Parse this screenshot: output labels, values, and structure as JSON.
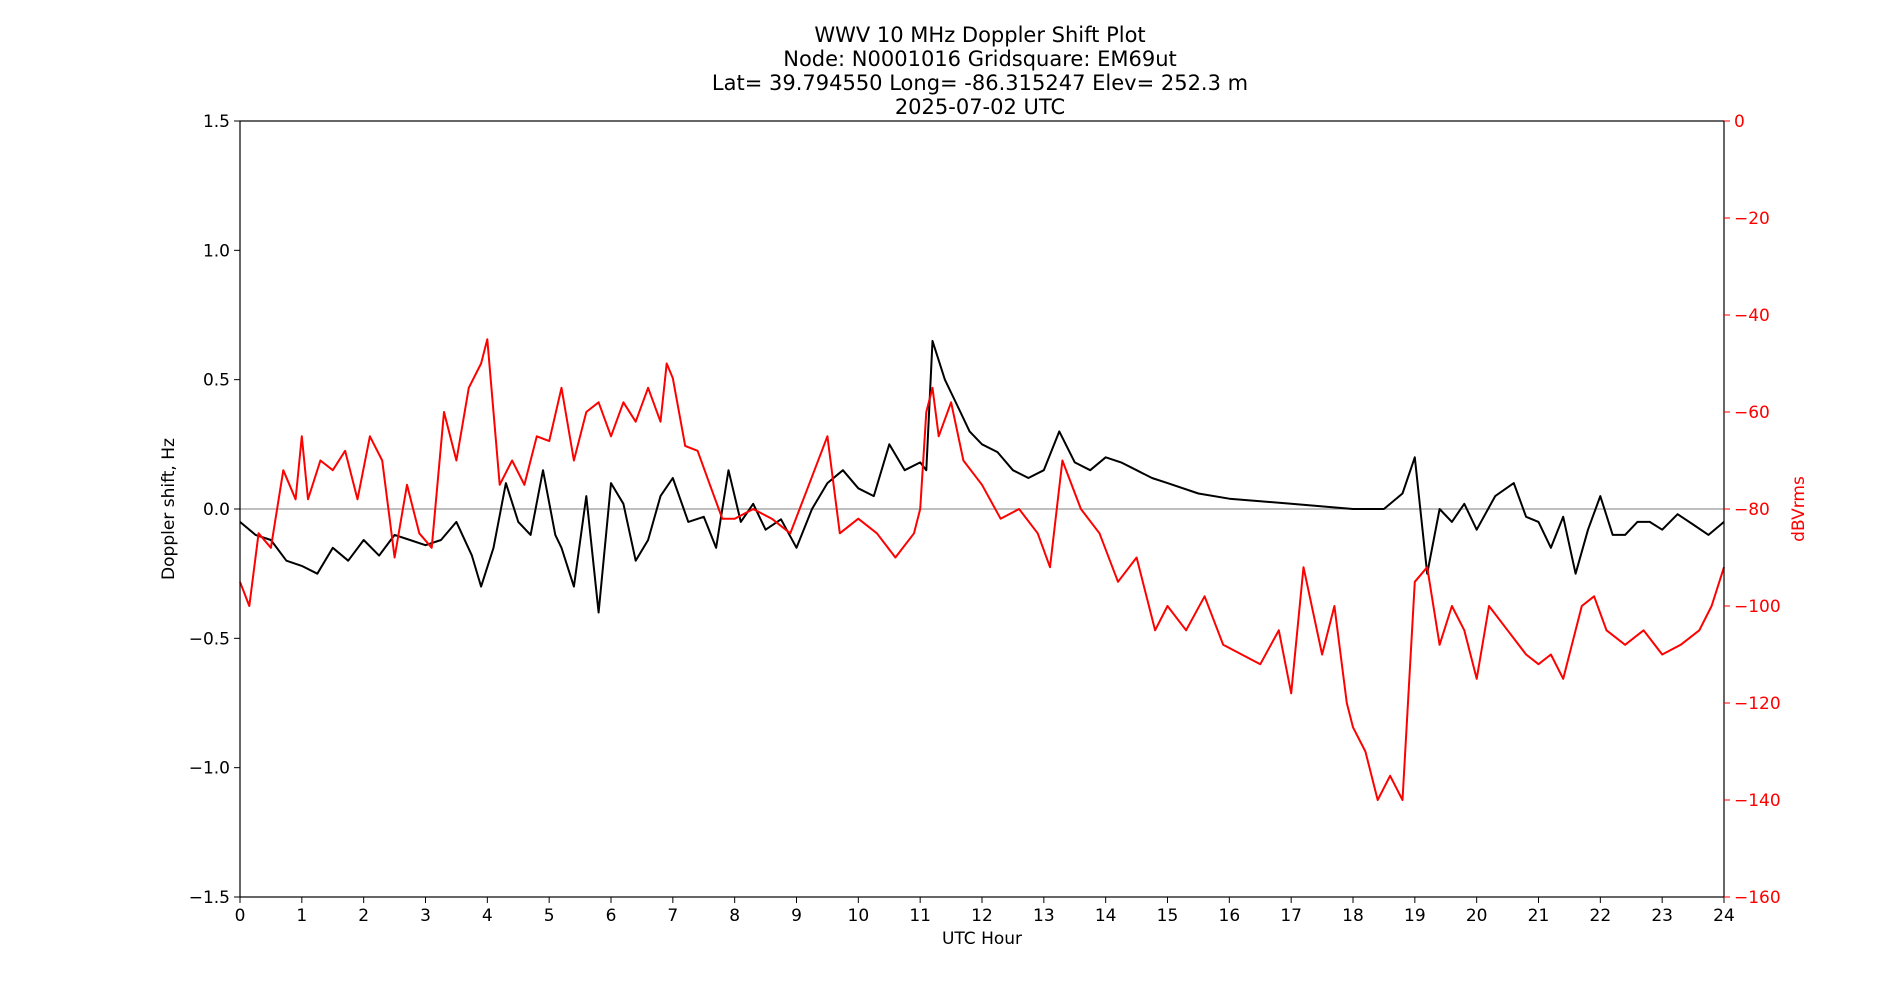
{
  "chart_data": {
    "type": "line",
    "title_lines": [
      "WWV 10 MHz Doppler Shift Plot",
      "Node:  N0001016     Gridsquare:  EM69ut",
      "Lat= 39.794550    Long= -86.315247    Elev= 252.3 m",
      "2025-07-02  UTC"
    ],
    "xlabel": "UTC Hour",
    "ylabel_left": "Doppler shift, Hz",
    "ylabel_right": "dBVrms",
    "xlim": [
      0,
      24
    ],
    "ylim_left": [
      -1.5,
      1.5
    ],
    "ylim_right": [
      -160,
      0
    ],
    "x_ticks": [
      "0",
      "1",
      "2",
      "3",
      "4",
      "5",
      "6",
      "7",
      "8",
      "9",
      "10",
      "11",
      "12",
      "13",
      "14",
      "15",
      "16",
      "17",
      "18",
      "19",
      "20",
      "21",
      "22",
      "23",
      "24"
    ],
    "y_ticks_left": [
      "1.5",
      "1.0",
      "0.5",
      "0.0",
      "−0.5",
      "−1.0",
      "−1.5"
    ],
    "y_ticks_right": [
      "0",
      "−20",
      "−40",
      "−60",
      "−80",
      "−100",
      "−120",
      "−140",
      "−160"
    ],
    "zero_line": true,
    "colors": {
      "doppler": "#000000",
      "power": "#ff0000",
      "zero_line": "#999999"
    },
    "series": [
      {
        "axis": "left",
        "x": [
          0,
          0.25,
          0.5,
          0.75,
          1,
          1.25,
          1.5,
          1.75,
          2,
          2.25,
          2.5,
          2.75,
          3,
          3.25,
          3.5,
          3.75,
          3.9,
          4.1,
          4.3,
          4.5,
          4.7,
          4.9,
          5.1,
          5.2,
          5.4,
          5.6,
          5.8,
          6,
          6.2,
          6.4,
          6.6,
          6.8,
          7,
          7.25,
          7.5,
          7.7,
          7.9,
          8.1,
          8.3,
          8.5,
          8.75,
          9,
          9.25,
          9.5,
          9.75,
          10,
          10.25,
          10.5,
          10.75,
          11,
          11.1,
          11.2,
          11.4,
          11.6,
          11.8,
          12,
          12.25,
          12.5,
          12.75,
          13,
          13.25,
          13.5,
          13.75,
          14,
          14.25,
          14.5,
          14.75,
          15,
          15.5,
          16,
          16.5,
          17,
          17.5,
          18,
          18.5,
          18.8,
          19,
          19.2,
          19.4,
          19.6,
          19.8,
          20,
          20.3,
          20.6,
          20.8,
          21,
          21.2,
          21.4,
          21.6,
          21.8,
          22,
          22.2,
          22.4,
          22.6,
          22.8,
          23,
          23.25,
          23.5,
          23.75,
          24
        ],
        "values": [
          -0.05,
          -0.1,
          -0.12,
          -0.2,
          -0.22,
          -0.25,
          -0.15,
          -0.2,
          -0.12,
          -0.18,
          -0.1,
          -0.12,
          -0.14,
          -0.12,
          -0.05,
          -0.18,
          -0.3,
          -0.15,
          0.1,
          -0.05,
          -0.1,
          0.15,
          -0.1,
          -0.15,
          -0.3,
          0.05,
          -0.4,
          0.1,
          0.02,
          -0.2,
          -0.12,
          0.05,
          0.12,
          -0.05,
          -0.03,
          -0.15,
          0.15,
          -0.05,
          0.02,
          -0.08,
          -0.04,
          -0.15,
          0.0,
          0.1,
          0.15,
          0.08,
          0.05,
          0.25,
          0.15,
          0.18,
          0.15,
          0.65,
          0.5,
          0.4,
          0.3,
          0.25,
          0.22,
          0.15,
          0.12,
          0.15,
          0.3,
          0.18,
          0.15,
          0.2,
          0.18,
          0.15,
          0.12,
          0.1,
          0.06,
          0.04,
          0.03,
          0.02,
          0.01,
          0.0,
          0.0,
          0.06,
          0.2,
          -0.25,
          0.0,
          -0.05,
          0.02,
          -0.08,
          0.05,
          0.1,
          -0.03,
          -0.05,
          -0.15,
          -0.03,
          -0.25,
          -0.08,
          0.05,
          -0.1,
          -0.1,
          -0.05,
          -0.05,
          -0.08,
          -0.02,
          -0.06,
          -0.1,
          -0.05
        ]
      },
      {
        "axis": "right",
        "x": [
          0,
          0.15,
          0.3,
          0.5,
          0.7,
          0.9,
          1,
          1.1,
          1.3,
          1.5,
          1.7,
          1.9,
          2.1,
          2.3,
          2.5,
          2.7,
          2.9,
          3.1,
          3.3,
          3.5,
          3.7,
          3.9,
          4.0,
          4.2,
          4.4,
          4.6,
          4.8,
          5,
          5.2,
          5.4,
          5.6,
          5.8,
          6,
          6.2,
          6.4,
          6.6,
          6.8,
          6.9,
          7.0,
          7.2,
          7.4,
          7.6,
          7.8,
          8,
          8.3,
          8.6,
          8.9,
          9.2,
          9.5,
          9.7,
          10,
          10.3,
          10.6,
          10.9,
          11,
          11.1,
          11.2,
          11.3,
          11.5,
          11.7,
          12,
          12.3,
          12.6,
          12.9,
          13.1,
          13.3,
          13.6,
          13.9,
          14.2,
          14.5,
          14.8,
          15,
          15.3,
          15.6,
          15.9,
          16.2,
          16.5,
          16.8,
          17,
          17.2,
          17.5,
          17.7,
          17.9,
          18.0,
          18.2,
          18.4,
          18.6,
          18.8,
          19,
          19.2,
          19.4,
          19.6,
          19.8,
          20,
          20.2,
          20.5,
          20.8,
          21,
          21.2,
          21.4,
          21.7,
          21.9,
          22.1,
          22.4,
          22.7,
          23,
          23.3,
          23.6,
          23.8,
          24
        ],
        "values": [
          -95,
          -100,
          -85,
          -88,
          -72,
          -78,
          -65,
          -78,
          -70,
          -72,
          -68,
          -78,
          -65,
          -70,
          -90,
          -75,
          -85,
          -88,
          -60,
          -70,
          -55,
          -50,
          -45,
          -75,
          -70,
          -75,
          -65,
          -66,
          -55,
          -70,
          -60,
          -58,
          -65,
          -58,
          -62,
          -55,
          -62,
          -50,
          -53,
          -67,
          -68,
          -75,
          -82,
          -82,
          -80,
          -82,
          -85,
          -75,
          -65,
          -85,
          -82,
          -85,
          -90,
          -85,
          -80,
          -60,
          -55,
          -65,
          -58,
          -70,
          -75,
          -82,
          -80,
          -85,
          -92,
          -70,
          -80,
          -85,
          -95,
          -90,
          -105,
          -100,
          -105,
          -98,
          -108,
          -110,
          -112,
          -105,
          -118,
          -92,
          -110,
          -100,
          -120,
          -125,
          -130,
          -140,
          -135,
          -140,
          -95,
          -92,
          -108,
          -100,
          -105,
          -115,
          -100,
          -105,
          -110,
          -112,
          -110,
          -115,
          -100,
          -98,
          -105,
          -108,
          -105,
          -110,
          -108,
          -105,
          -100,
          -92
        ]
      }
    ]
  }
}
